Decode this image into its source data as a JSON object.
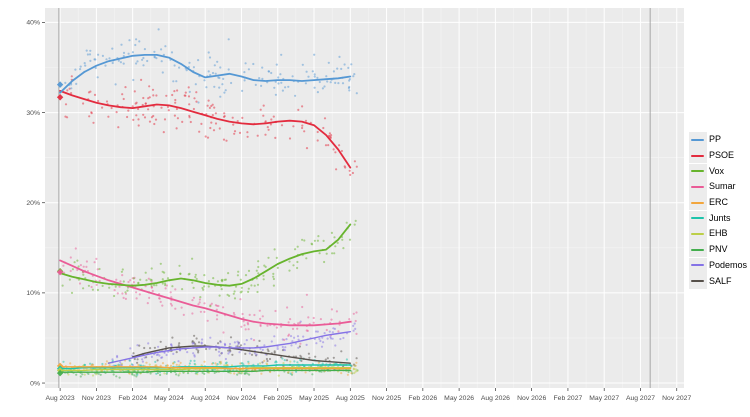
{
  "colors": {
    "page_bg": "#ffffff",
    "panel_bg": "#ebebeb",
    "grid_major": "#ffffff",
    "grid_minor": "#f5f5f5",
    "axis_text": "#4d4d4d",
    "tick_mark": "#333333",
    "reference_line": "#9e9e9e",
    "legend_key_bg": "#ececec",
    "legend_text": "#000000"
  },
  "chart_data": {
    "type": "scatter",
    "description": "Opinion polling scatter with smoothed trend lines per party; diamonds at left mark Jul 2023 election results; vertical lines mark the 2023 election and the expected next election",
    "grid": true,
    "legend_position": "right",
    "x_unit_months_from": "Aug 2023",
    "x_tick_interval_months": 3,
    "xlim_months": [
      -1.25,
      51.6
    ],
    "ylim": [
      -0.55,
      41.6
    ],
    "y_ticks": [
      0,
      10,
      20,
      30,
      40
    ],
    "y_tick_labels": [
      "0%",
      "10%",
      "20%",
      "30%",
      "40%"
    ],
    "x_tick_labels": [
      "Aug 2023",
      "Nov 2023",
      "Feb 2024",
      "May 2024",
      "Aug 2024",
      "Nov 2024",
      "Feb 2025",
      "May 2025",
      "Aug 2025",
      "Nov 2025",
      "Feb 2026",
      "May 2026",
      "Aug 2026",
      "Nov 2026",
      "Feb 2027",
      "May 2027",
      "Aug 2027",
      "Nov 2027"
    ],
    "y_minor_ticks": [
      5,
      15,
      25,
      35
    ],
    "reference_lines_months": [
      -0.1,
      48.8
    ],
    "data_end_month": 24.6,
    "series": [
      {
        "name": "PP",
        "color": "#5598d4",
        "start_month": 0,
        "election_result": 33.1,
        "scatter_n": 175,
        "scatter_sigma": 1.3,
        "monthly_values": [
          32.2,
          33.5,
          34.5,
          35.2,
          35.7,
          36.0,
          36.3,
          36.4,
          36.4,
          36.1,
          35.4,
          34.5,
          33.9,
          34.1,
          34.3,
          34.0,
          33.6,
          33.5,
          33.6,
          33.6,
          33.5,
          33.6,
          33.7,
          33.8,
          34.0
        ]
      },
      {
        "name": "PSOE",
        "color": "#e32b3e",
        "start_month": 0,
        "election_result": 31.7,
        "scatter_n": 175,
        "scatter_sigma": 1.3,
        "monthly_values": [
          32.4,
          31.9,
          31.5,
          31.1,
          30.8,
          30.6,
          30.5,
          30.7,
          30.9,
          30.8,
          30.5,
          30.1,
          29.7,
          29.3,
          29.0,
          28.8,
          28.7,
          28.8,
          29.0,
          29.1,
          29.0,
          28.6,
          27.5,
          25.9,
          23.9
        ]
      },
      {
        "name": "Vox",
        "color": "#67b42d",
        "start_month": 0,
        "election_result": 12.4,
        "scatter_n": 165,
        "scatter_sigma": 0.9,
        "monthly_values": [
          12.2,
          11.8,
          11.5,
          11.2,
          11.0,
          10.9,
          10.8,
          10.9,
          11.1,
          11.4,
          11.6,
          11.4,
          11.1,
          10.9,
          10.8,
          11.0,
          11.6,
          12.4,
          13.2,
          13.8,
          14.3,
          14.6,
          14.8,
          15.9,
          17.6
        ]
      },
      {
        "name": "Sumar",
        "color": "#ea5c97",
        "start_month": 0,
        "election_result": 12.3,
        "scatter_n": 165,
        "scatter_sigma": 1.0,
        "monthly_values": [
          13.6,
          13.0,
          12.4,
          11.9,
          11.4,
          11.0,
          10.6,
          10.2,
          9.8,
          9.4,
          9.0,
          8.6,
          8.3,
          7.9,
          7.5,
          7.1,
          6.8,
          6.6,
          6.5,
          6.4,
          6.4,
          6.4,
          6.5,
          6.6,
          6.8
        ]
      },
      {
        "name": "ERC",
        "color": "#f2a63d",
        "start_month": 0,
        "election_result": 1.9,
        "scatter_n": 140,
        "scatter_sigma": 0.3,
        "monthly_values": [
          1.8,
          1.8,
          1.8,
          1.8,
          1.8,
          1.8,
          1.8,
          1.8,
          1.8,
          1.7,
          1.7,
          1.7,
          1.7,
          1.7,
          1.6,
          1.6,
          1.6,
          1.6,
          1.6,
          1.6,
          1.6,
          1.6,
          1.6,
          1.6,
          1.6
        ]
      },
      {
        "name": "Junts",
        "color": "#1ec4ab",
        "start_month": 0,
        "election_result": 1.6,
        "scatter_n": 140,
        "scatter_sigma": 0.35,
        "monthly_values": [
          1.6,
          1.6,
          1.7,
          1.7,
          1.7,
          1.7,
          1.7,
          1.7,
          1.7,
          1.7,
          1.8,
          1.8,
          1.8,
          1.8,
          1.8,
          1.9,
          1.9,
          1.9,
          2.0,
          2.0,
          2.0,
          2.0,
          2.0,
          2.0,
          2.0
        ]
      },
      {
        "name": "EHB",
        "color": "#bccf48",
        "start_month": 0,
        "election_result": 1.4,
        "scatter_n": 140,
        "scatter_sigma": 0.3,
        "monthly_values": [
          1.4,
          1.4,
          1.4,
          1.5,
          1.5,
          1.5,
          1.5,
          1.5,
          1.5,
          1.5,
          1.5,
          1.6,
          1.6,
          1.6,
          1.6,
          1.6,
          1.7,
          1.7,
          1.7,
          1.7,
          1.7,
          1.7,
          1.7,
          1.7,
          1.7
        ]
      },
      {
        "name": "PNV",
        "color": "#44ae4e",
        "start_month": 0,
        "election_result": 1.1,
        "scatter_n": 140,
        "scatter_sigma": 0.25,
        "monthly_values": [
          1.2,
          1.2,
          1.2,
          1.2,
          1.2,
          1.2,
          1.2,
          1.2,
          1.3,
          1.3,
          1.3,
          1.3,
          1.3,
          1.3,
          1.3,
          1.3,
          1.3,
          1.4,
          1.4,
          1.4,
          1.4,
          1.4,
          1.4,
          1.4,
          1.4
        ]
      },
      {
        "name": "Podemos",
        "color": "#8573e6",
        "start_month": 4,
        "election_result": null,
        "scatter_n": 135,
        "scatter_sigma": 0.55,
        "monthly_values": [
          2.2,
          2.5,
          2.8,
          3.1,
          3.4,
          3.6,
          3.8,
          3.9,
          4.0,
          4.0,
          3.9,
          3.9,
          3.9,
          4.0,
          4.2,
          4.4,
          4.7,
          5.0,
          5.3,
          5.5,
          5.7
        ]
      },
      {
        "name": "SALF",
        "color": "#56504a",
        "start_month": 6,
        "election_result": null,
        "scatter_n": 105,
        "scatter_sigma": 0.6,
        "monthly_values": [
          2.9,
          3.3,
          3.6,
          3.9,
          4.0,
          4.1,
          4.1,
          4.0,
          3.9,
          3.7,
          3.5,
          3.3,
          3.1,
          2.9,
          2.7,
          2.5,
          2.4,
          2.3,
          2.2
        ]
      }
    ]
  }
}
